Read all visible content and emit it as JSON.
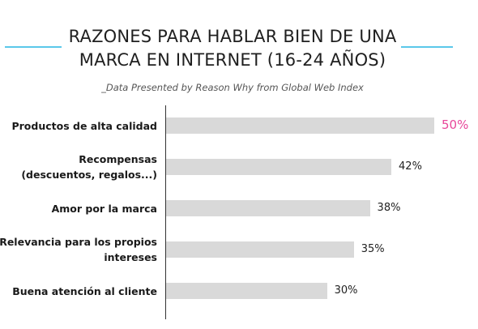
{
  "chart_data": {
    "type": "bar",
    "orientation": "horizontal",
    "title_lines": [
      "RAZONES PARA HABLAR BIEN DE UNA",
      "MARCA EN INTERNET (16-24 AÑOS)"
    ],
    "subtitle": "_Data Presented by Reason Why from Global Web Index",
    "categories": [
      [
        "Productos de alta calidad"
      ],
      [
        "Recompensas",
        "(descuentos, regalos...)"
      ],
      [
        "Amor por la marca"
      ],
      [
        "Relevancia para los propios",
        "intereses"
      ],
      [
        "Buena atención al cliente"
      ]
    ],
    "values": [
      50,
      42,
      38,
      35,
      30
    ],
    "value_labels": [
      "50%",
      "42%",
      "38%",
      "35%",
      "30%"
    ],
    "xlim": [
      0,
      50
    ],
    "highlight_index": 0,
    "colors": {
      "bar": "#d9d9d9",
      "highlight_label": "#e8479a",
      "accent_line": "#5bc8ea"
    },
    "grid": false
  }
}
